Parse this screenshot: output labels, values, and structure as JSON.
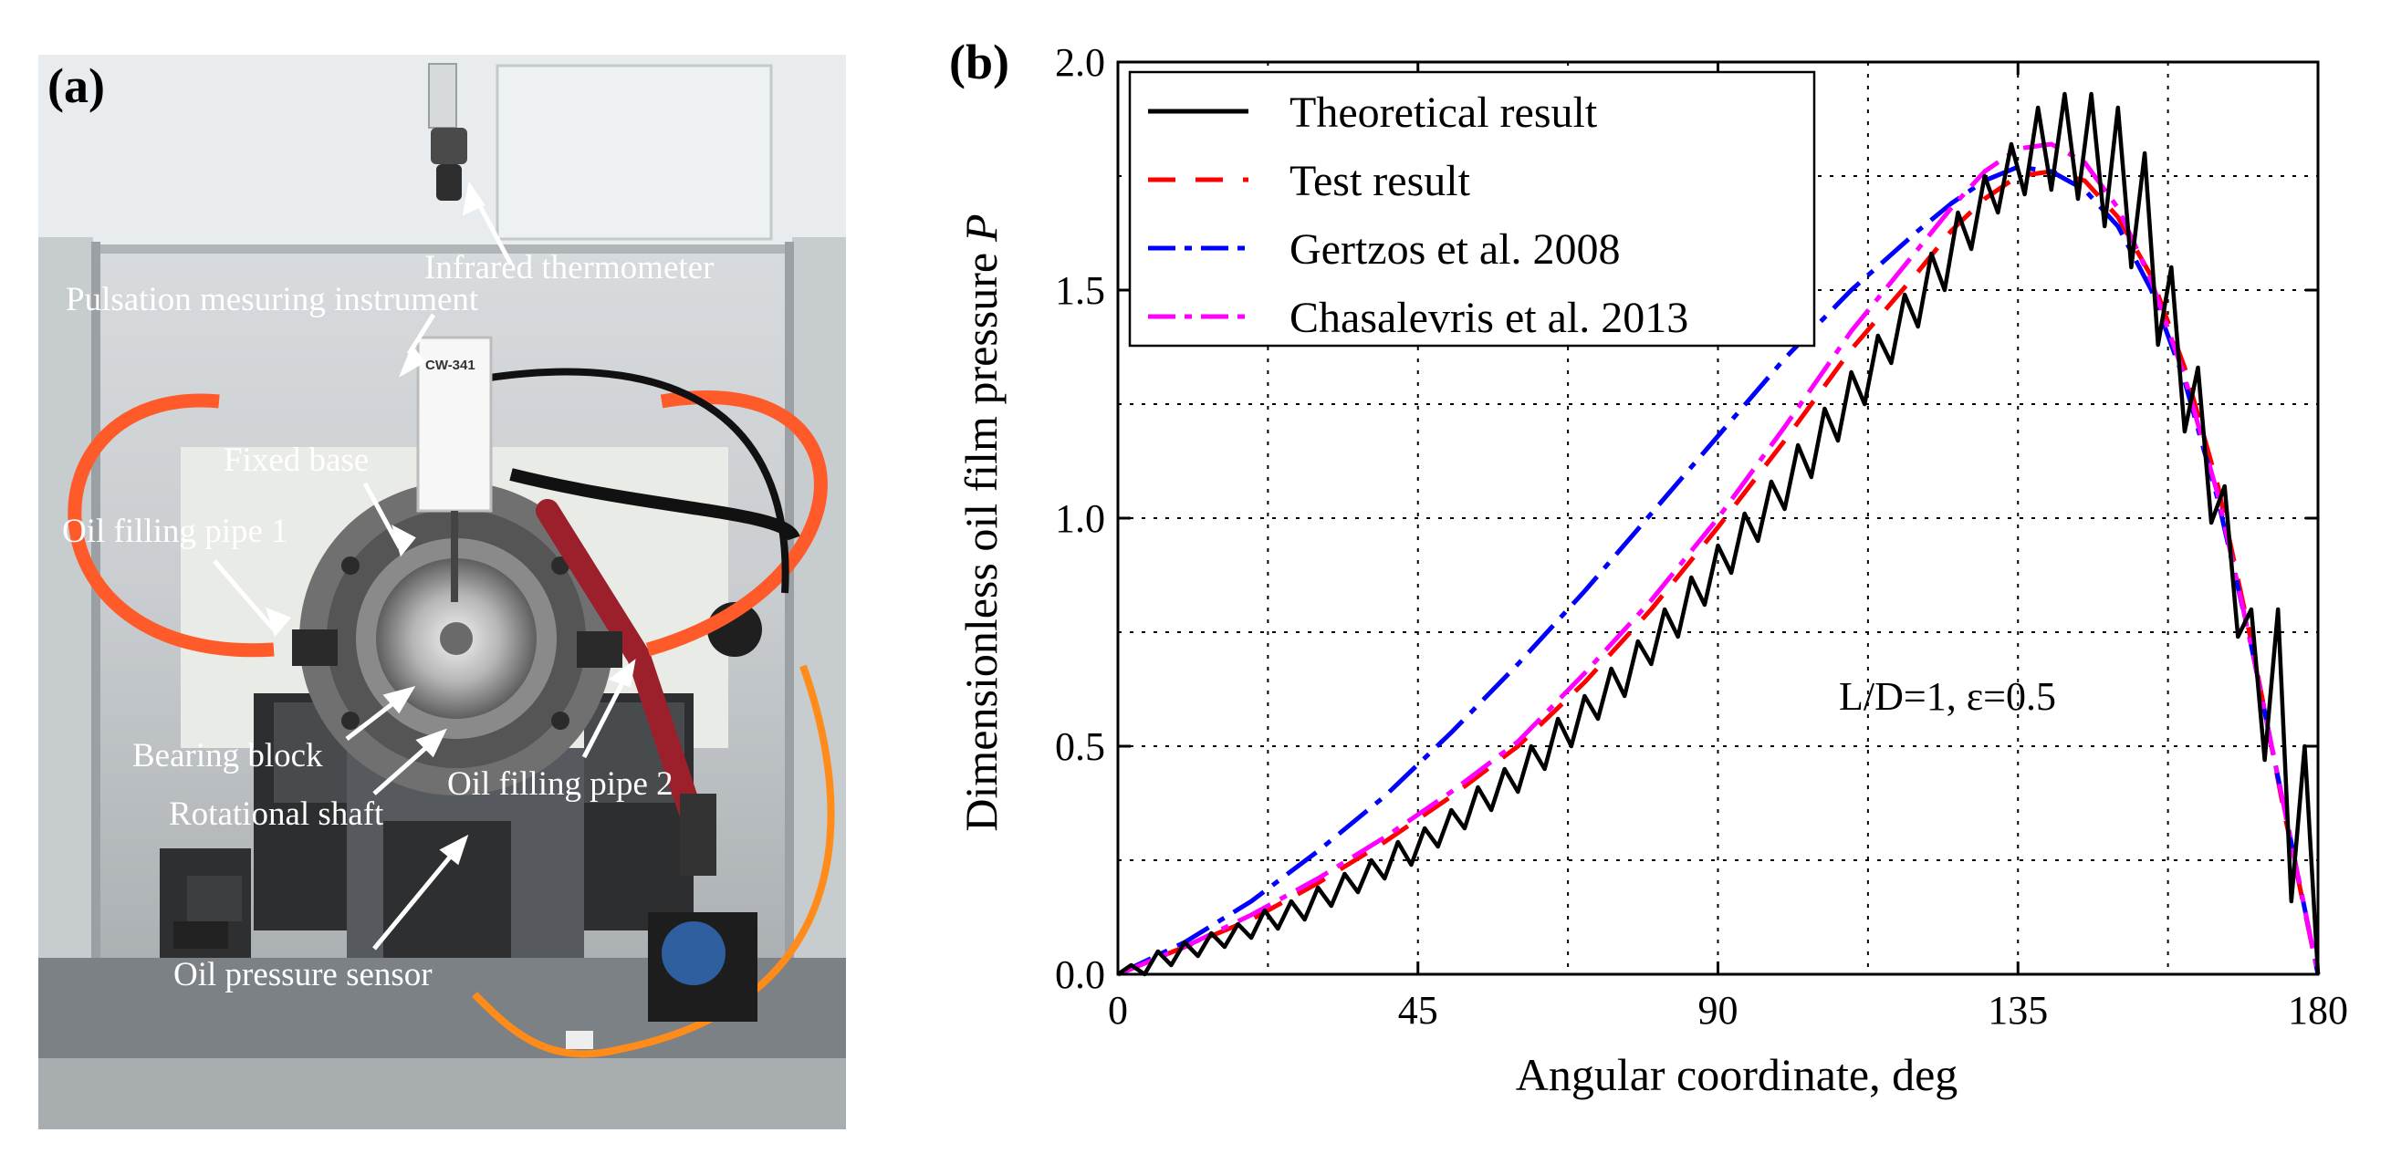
{
  "panel_a": {
    "letter": "(a)",
    "device_label": "CW-341",
    "labels": {
      "infrared": "Infrared thermometer",
      "pulsation": "Pulsation mesuring instrument",
      "fixed_base": "Fixed base",
      "pipe1": "Oil filling pipe 1",
      "bearing": "Bearing block",
      "shaft": "Rotational shaft",
      "pipe2": "Oil filling pipe 2",
      "sensor": "Oil pressure sensor"
    }
  },
  "chart_data": {
    "type": "line",
    "panel_letter": "(b)",
    "title": "",
    "xlabel": "Angular coordinate, deg",
    "ylabel": "Dimensionless oil film pressure",
    "ylabel_symbol": "P",
    "xlim": [
      0,
      180
    ],
    "ylim": [
      0,
      2.0
    ],
    "x_ticks": [
      0,
      45,
      90,
      135,
      180
    ],
    "x_tick_labels": [
      "0",
      "45",
      "90",
      "135",
      "180"
    ],
    "y_ticks": [
      0,
      0.5,
      1.0,
      1.5,
      2.0
    ],
    "y_tick_labels": [
      "0.0",
      "0.5",
      "1.0",
      "1.5",
      "2.0"
    ],
    "grid": true,
    "legend_position": "top-left",
    "annotation": "L/D=1, ε=0.5",
    "series": [
      {
        "name": "Theoretical result",
        "color": "#000000",
        "style": "solid",
        "x": [
          0,
          2,
          4,
          6,
          8,
          10,
          12,
          14,
          16,
          18,
          20,
          22,
          24,
          26,
          28,
          30,
          32,
          34,
          36,
          38,
          40,
          42,
          44,
          46,
          48,
          50,
          52,
          54,
          56,
          58,
          60,
          62,
          64,
          66,
          68,
          70,
          72,
          74,
          76,
          78,
          80,
          82,
          84,
          86,
          88,
          90,
          92,
          94,
          96,
          98,
          100,
          102,
          104,
          106,
          108,
          110,
          112,
          114,
          116,
          118,
          120,
          122,
          124,
          126,
          128,
          130,
          132,
          134,
          136,
          138,
          140,
          142,
          144,
          146,
          148,
          150,
          152,
          154,
          156,
          158,
          160,
          162,
          164,
          166,
          168,
          170,
          172,
          174,
          176,
          178,
          180
        ],
        "y": [
          0.0,
          0.02,
          0.0,
          0.05,
          0.02,
          0.07,
          0.04,
          0.09,
          0.06,
          0.11,
          0.08,
          0.14,
          0.1,
          0.16,
          0.12,
          0.19,
          0.15,
          0.22,
          0.18,
          0.25,
          0.21,
          0.29,
          0.24,
          0.32,
          0.28,
          0.36,
          0.32,
          0.41,
          0.36,
          0.45,
          0.4,
          0.5,
          0.45,
          0.56,
          0.5,
          0.61,
          0.56,
          0.67,
          0.61,
          0.73,
          0.68,
          0.8,
          0.74,
          0.87,
          0.81,
          0.94,
          0.88,
          1.01,
          0.95,
          1.08,
          1.02,
          1.16,
          1.09,
          1.24,
          1.17,
          1.32,
          1.25,
          1.4,
          1.34,
          1.49,
          1.42,
          1.58,
          1.5,
          1.67,
          1.59,
          1.75,
          1.67,
          1.82,
          1.71,
          1.9,
          1.72,
          1.93,
          1.7,
          1.93,
          1.64,
          1.9,
          1.55,
          1.8,
          1.38,
          1.55,
          1.19,
          1.33,
          0.99,
          1.07,
          0.74,
          0.8,
          0.47,
          0.8,
          0.16,
          0.5,
          0.0
        ]
      },
      {
        "name": "Test result",
        "color": "#ff0000",
        "style": "dashed",
        "x": [
          0,
          10,
          20,
          30,
          40,
          50,
          60,
          70,
          80,
          90,
          100,
          110,
          120,
          125,
          130,
          135,
          140,
          145,
          150,
          155,
          160,
          165,
          170,
          175,
          180
        ],
        "y": [
          0.0,
          0.06,
          0.12,
          0.2,
          0.29,
          0.39,
          0.5,
          0.64,
          0.8,
          0.98,
          1.17,
          1.37,
          1.54,
          1.63,
          1.7,
          1.75,
          1.76,
          1.74,
          1.66,
          1.53,
          1.33,
          1.07,
          0.73,
          0.35,
          0.0
        ]
      },
      {
        "name": "Gertzos et al. 2008",
        "color": "#0000ff",
        "style": "dashdot",
        "x": [
          0,
          10,
          20,
          30,
          40,
          50,
          60,
          70,
          80,
          90,
          100,
          110,
          120,
          125,
          130,
          135,
          140,
          145,
          150,
          155,
          160,
          165,
          170,
          175,
          180
        ],
        "y": [
          0.0,
          0.07,
          0.16,
          0.27,
          0.39,
          0.53,
          0.68,
          0.84,
          1.01,
          1.18,
          1.35,
          1.5,
          1.63,
          1.69,
          1.74,
          1.77,
          1.76,
          1.72,
          1.64,
          1.5,
          1.3,
          1.04,
          0.72,
          0.36,
          0.0
        ]
      },
      {
        "name": "Chasalevris et al. 2013",
        "color": "#ff00ff",
        "style": "dashdot",
        "x": [
          0,
          10,
          20,
          30,
          40,
          50,
          60,
          70,
          80,
          90,
          100,
          110,
          120,
          125,
          130,
          135,
          140,
          145,
          150,
          155,
          160,
          165,
          170,
          175,
          180
        ],
        "y": [
          0.0,
          0.06,
          0.13,
          0.21,
          0.3,
          0.4,
          0.51,
          0.66,
          0.82,
          1.0,
          1.2,
          1.41,
          1.59,
          1.68,
          1.76,
          1.81,
          1.82,
          1.78,
          1.68,
          1.52,
          1.31,
          1.05,
          0.72,
          0.36,
          0.0
        ]
      }
    ]
  }
}
